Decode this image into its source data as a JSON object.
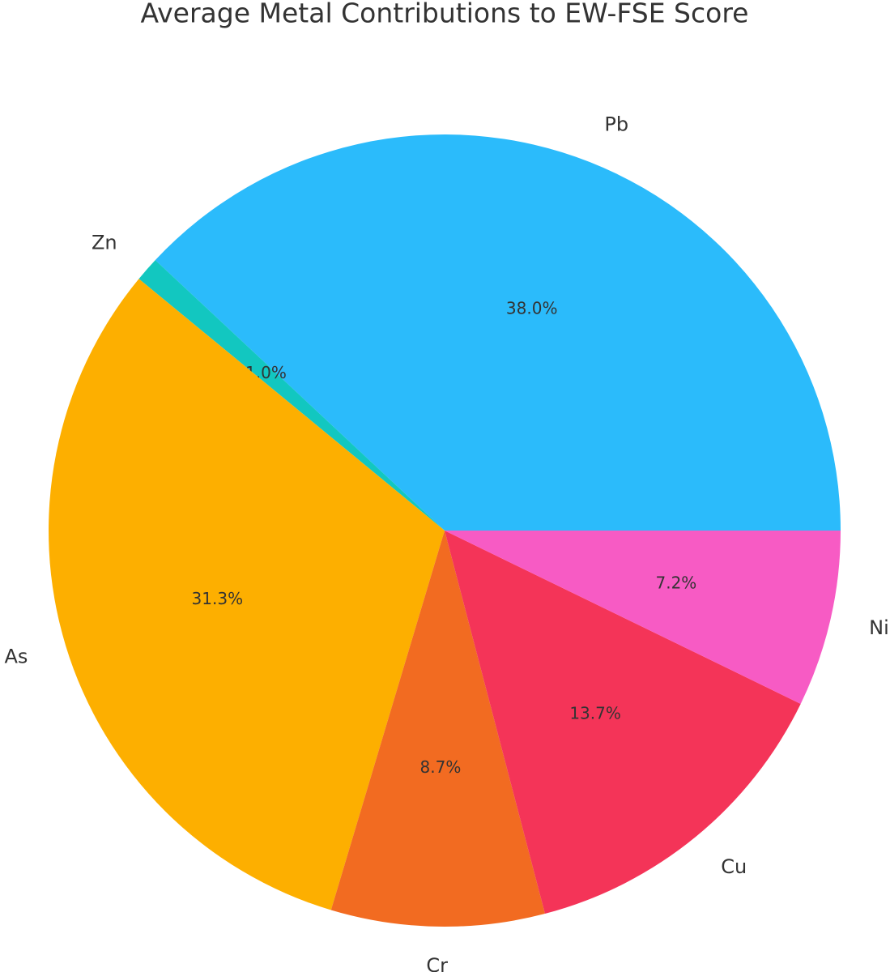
{
  "chart_data": {
    "type": "pie",
    "title": "Average Metal Contributions to EW-FSE Score",
    "categories": [
      "Pb",
      "Zn",
      "As",
      "Cr",
      "Cu",
      "Ni"
    ],
    "values": [
      38.0,
      1.0,
      31.3,
      8.7,
      13.7,
      7.2
    ],
    "value_labels": [
      "38.0%",
      "1.0%",
      "31.3%",
      "8.7%",
      "13.7%",
      "7.2%"
    ],
    "colors": [
      "#2bbbfb",
      "#12c7c0",
      "#fdaf00",
      "#f26b21",
      "#f43458",
      "#f75bc4"
    ]
  }
}
